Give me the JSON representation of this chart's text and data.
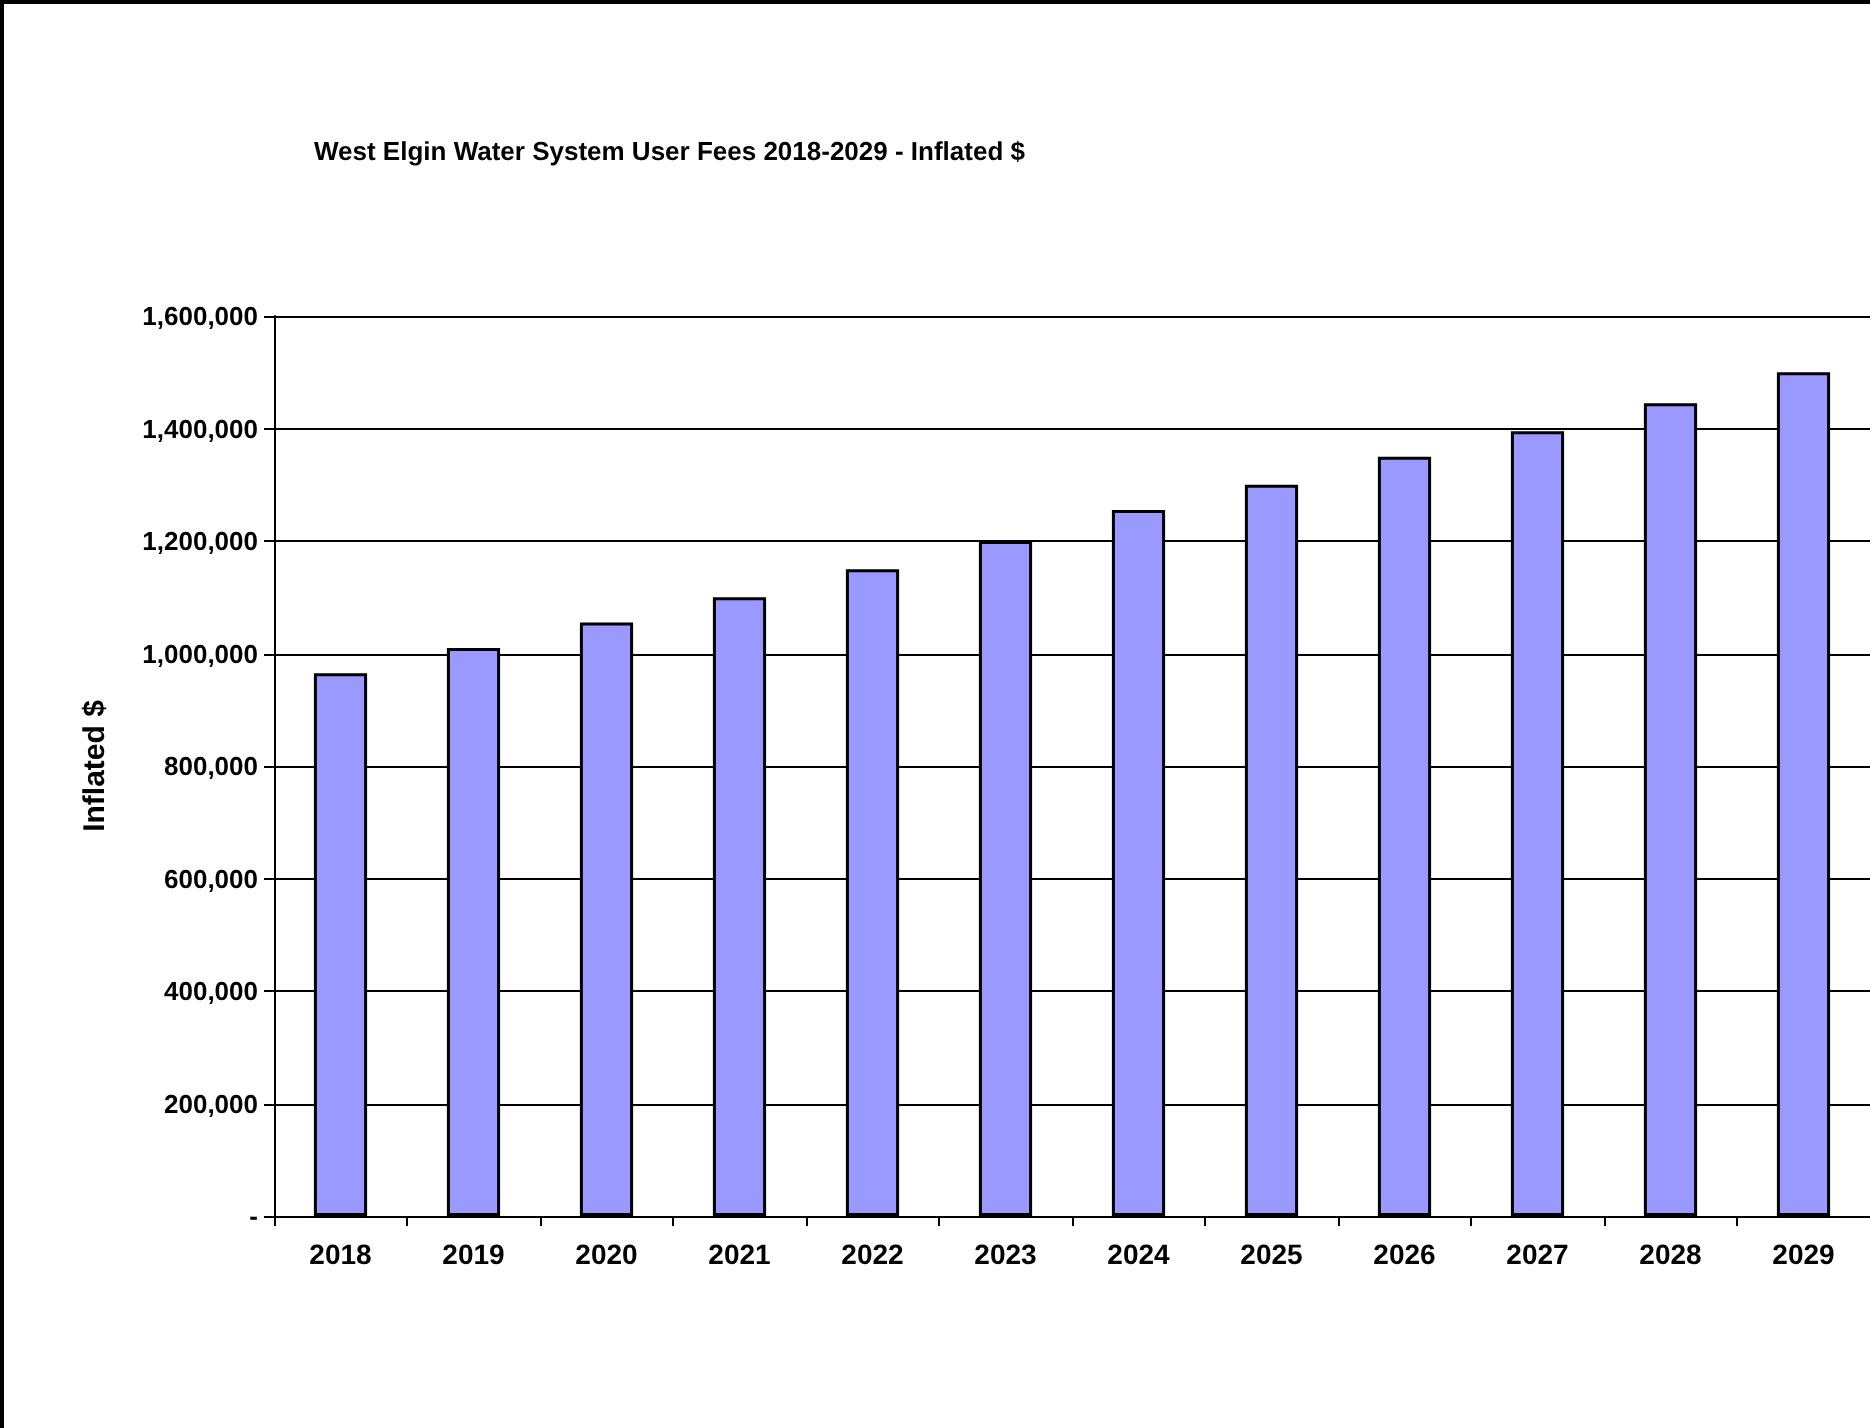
{
  "chart_data": {
    "type": "bar",
    "title": "West Elgin Water System User Fees 2018-2029 - Inflated $",
    "ylabel": "Inflated $",
    "categories": [
      "2018",
      "2019",
      "2020",
      "2021",
      "2022",
      "2023",
      "2024",
      "2025",
      "2026",
      "2027",
      "2028",
      "2029"
    ],
    "values": [
      965000,
      1010000,
      1055000,
      1100000,
      1150000,
      1200000,
      1255000,
      1300000,
      1350000,
      1395000,
      1445000,
      1500000
    ],
    "color": "#9999ff",
    "ylim": [
      0,
      1600000
    ],
    "yticks": [
      {
        "value": 0,
        "label": "-"
      },
      {
        "value": 200000,
        "label": "200,000"
      },
      {
        "value": 400000,
        "label": "400,000"
      },
      {
        "value": 600000,
        "label": "600,000"
      },
      {
        "value": 800000,
        "label": "800,000"
      },
      {
        "value": 1000000,
        "label": "1,000,000"
      },
      {
        "value": 1200000,
        "label": "1,200,000"
      },
      {
        "value": 1400000,
        "label": "1,400,000"
      },
      {
        "value": 1600000,
        "label": "1,600,000"
      }
    ],
    "grid": "y"
  }
}
